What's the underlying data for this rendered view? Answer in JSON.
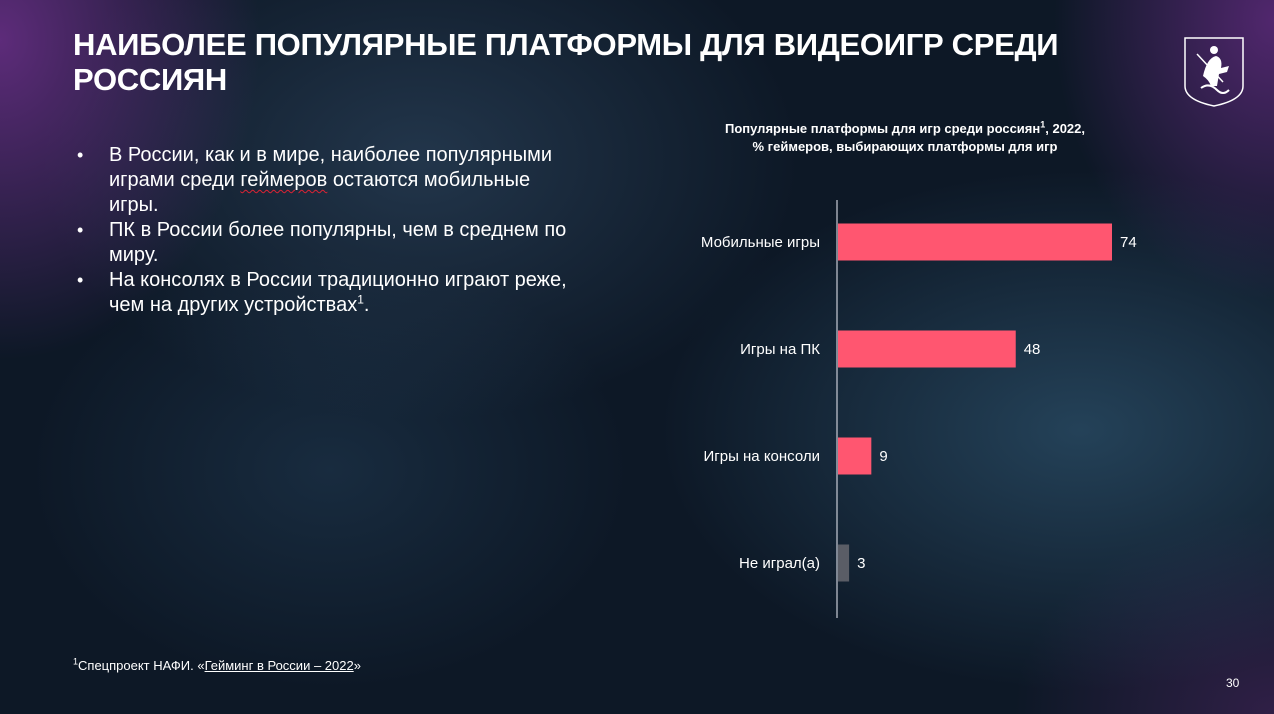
{
  "slide": {
    "title": "НАИБОЛЕЕ ПОПУЛЯРНЫЕ ПЛАТФОРМЫ ДЛЯ ВИДЕОИГР СРЕДИ РОССИЯН",
    "page_number": "30"
  },
  "bullets": {
    "b1_prefix": "В России, как и в мире, наиболее популярными играми среди ",
    "b1_underlined": "геймеров",
    "b1_suffix": " остаются мобильные игры.",
    "b2": "ПК в России более популярны, чем в среднем по миру.",
    "b3_text": "На консолях в России традиционно играют реже, чем на других устройствах",
    "b3_sup": "1",
    "b3_end": ".",
    "marker": "•"
  },
  "footnote": {
    "sup": "1",
    "prefix": "Спецпроект НАФИ. «",
    "link": "Гейминг в России – 2022",
    "suffix": "»"
  },
  "chart_title": {
    "line1": "Популярные платформы для игр среди россиян",
    "sup": "1",
    "line1_end": ", 2022,",
    "line2": "% геймеров, выбирающих платформы для игр"
  },
  "chart_data": {
    "type": "bar",
    "orientation": "horizontal",
    "title": "Популярные платформы для игр среди россиян1, 2022, % геймеров, выбирающих платформы для игр",
    "categories": [
      "Мобильные игры",
      "Игры на ПК",
      "Игры на консоли",
      "Не играл(а)"
    ],
    "values": [
      74,
      48,
      9,
      3
    ],
    "colors": [
      "#ff5670",
      "#ff5670",
      "#ff5670",
      "#5a5d66"
    ],
    "xlim": [
      0,
      80
    ],
    "grid": false,
    "legend": "none",
    "data_labels": true
  }
}
